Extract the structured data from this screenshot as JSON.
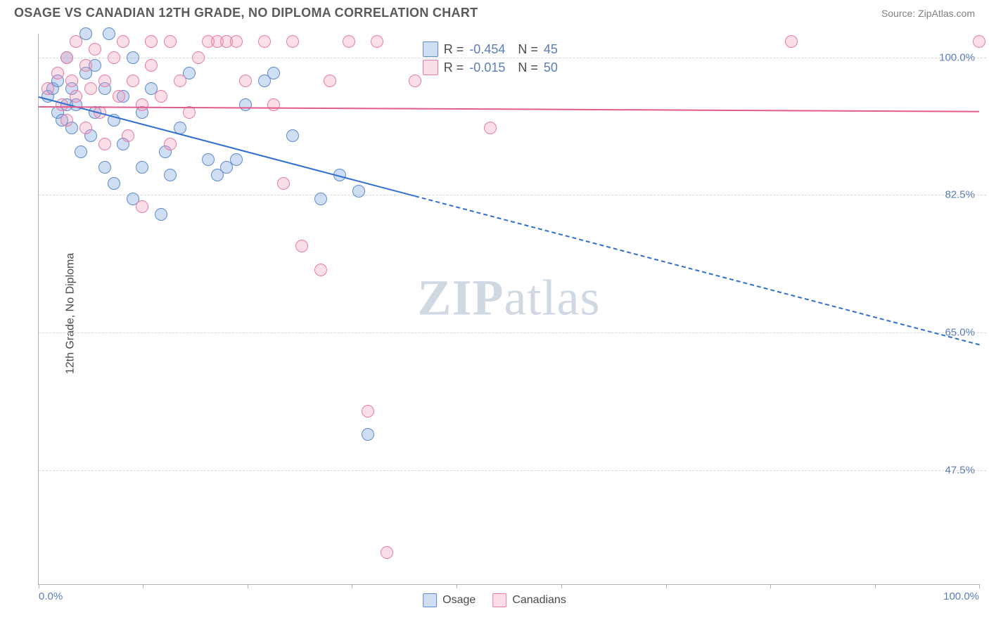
{
  "title": "OSAGE VS CANADIAN 12TH GRADE, NO DIPLOMA CORRELATION CHART",
  "source": "Source: ZipAtlas.com",
  "ylabel": "12th Grade, No Diploma",
  "watermark_bold": "ZIP",
  "watermark_rest": "atlas",
  "chart": {
    "type": "scatter",
    "background_color": "#ffffff",
    "grid_color": "#d8d8d8",
    "axis_color": "#b0b0b0",
    "tick_label_color": "#5b7db8",
    "xlim": [
      0,
      100
    ],
    "ylim": [
      33,
      103
    ],
    "yticks": [
      {
        "v": 100.0,
        "label": "100.0%"
      },
      {
        "v": 82.5,
        "label": "82.5%"
      },
      {
        "v": 65.0,
        "label": "65.0%"
      },
      {
        "v": 47.5,
        "label": "47.5%"
      }
    ],
    "xticks": [
      0,
      11.1,
      22.2,
      33.3,
      44.4,
      55.6,
      66.7,
      77.8,
      88.9,
      100
    ],
    "xaxis_min_label": "0.0%",
    "xaxis_max_label": "100.0%",
    "marker_radius": 9,
    "marker_stroke_width": 1,
    "series": [
      {
        "name": "Osage",
        "fill": "rgba(120,160,220,0.35)",
        "stroke": "#5b8ad0",
        "line_color": "#2f6fd0",
        "R": "-0.454",
        "N": "45",
        "regression": {
          "x1": 0,
          "y1": 95.0,
          "x2": 100,
          "y2": 63.5,
          "solid_until_x": 40
        },
        "points": [
          [
            1,
            95
          ],
          [
            1.5,
            96
          ],
          [
            2,
            93
          ],
          [
            2,
            97
          ],
          [
            2.5,
            92
          ],
          [
            3,
            94
          ],
          [
            3,
            100
          ],
          [
            3.5,
            96
          ],
          [
            3.5,
            91
          ],
          [
            4,
            94
          ],
          [
            4.5,
            88
          ],
          [
            5,
            98
          ],
          [
            5,
            103
          ],
          [
            5.5,
            90
          ],
          [
            6,
            93
          ],
          [
            6,
            99
          ],
          [
            7,
            96
          ],
          [
            7,
            86
          ],
          [
            7.5,
            103
          ],
          [
            8,
            92
          ],
          [
            8,
            84
          ],
          [
            9,
            89
          ],
          [
            9,
            95
          ],
          [
            10,
            82
          ],
          [
            10,
            100
          ],
          [
            11,
            93
          ],
          [
            11,
            86
          ],
          [
            12,
            96
          ],
          [
            13,
            80
          ],
          [
            13.5,
            88
          ],
          [
            14,
            85
          ],
          [
            15,
            91
          ],
          [
            16,
            98
          ],
          [
            18,
            87
          ],
          [
            19,
            85
          ],
          [
            20,
            86
          ],
          [
            21,
            87
          ],
          [
            22,
            94
          ],
          [
            24,
            97
          ],
          [
            25,
            98
          ],
          [
            27,
            90
          ],
          [
            30,
            82
          ],
          [
            32,
            85
          ],
          [
            34,
            83
          ],
          [
            35,
            52
          ]
        ]
      },
      {
        "name": "Canadians",
        "fill": "rgba(240,150,180,0.30)",
        "stroke": "#e87ba3",
        "line_color": "#e25c8e",
        "R": "-0.015",
        "N": "50",
        "regression": {
          "x1": 0,
          "y1": 93.8,
          "x2": 100,
          "y2": 93.2,
          "solid_until_x": 100
        },
        "points": [
          [
            1,
            96
          ],
          [
            2,
            98
          ],
          [
            2.5,
            94
          ],
          [
            3,
            92
          ],
          [
            3,
            100
          ],
          [
            3.5,
            97
          ],
          [
            4,
            95
          ],
          [
            4,
            102
          ],
          [
            5,
            91
          ],
          [
            5,
            99
          ],
          [
            5.5,
            96
          ],
          [
            6,
            101
          ],
          [
            6.5,
            93
          ],
          [
            7,
            89
          ],
          [
            7,
            97
          ],
          [
            8,
            100
          ],
          [
            8.5,
            95
          ],
          [
            9,
            102
          ],
          [
            9.5,
            90
          ],
          [
            10,
            97
          ],
          [
            11,
            81
          ],
          [
            11,
            94
          ],
          [
            12,
            99
          ],
          [
            12,
            102
          ],
          [
            13,
            95
          ],
          [
            14,
            89
          ],
          [
            14,
            102
          ],
          [
            15,
            97
          ],
          [
            16,
            93
          ],
          [
            17,
            100
          ],
          [
            18,
            102
          ],
          [
            19,
            102
          ],
          [
            20,
            102
          ],
          [
            21,
            102
          ],
          [
            22,
            97
          ],
          [
            24,
            102
          ],
          [
            25,
            94
          ],
          [
            26,
            84
          ],
          [
            27,
            102
          ],
          [
            28,
            76
          ],
          [
            30,
            73
          ],
          [
            31,
            97
          ],
          [
            33,
            102
          ],
          [
            35,
            55
          ],
          [
            36,
            102
          ],
          [
            37,
            37
          ],
          [
            40,
            97
          ],
          [
            48,
            91
          ],
          [
            80,
            102
          ],
          [
            100,
            102
          ]
        ]
      }
    ]
  },
  "bottom_legend": [
    {
      "label": "Osage",
      "fill": "rgba(120,160,220,0.35)",
      "stroke": "#5b8ad0"
    },
    {
      "label": "Canadians",
      "fill": "rgba(240,150,180,0.30)",
      "stroke": "#e87ba3"
    }
  ]
}
